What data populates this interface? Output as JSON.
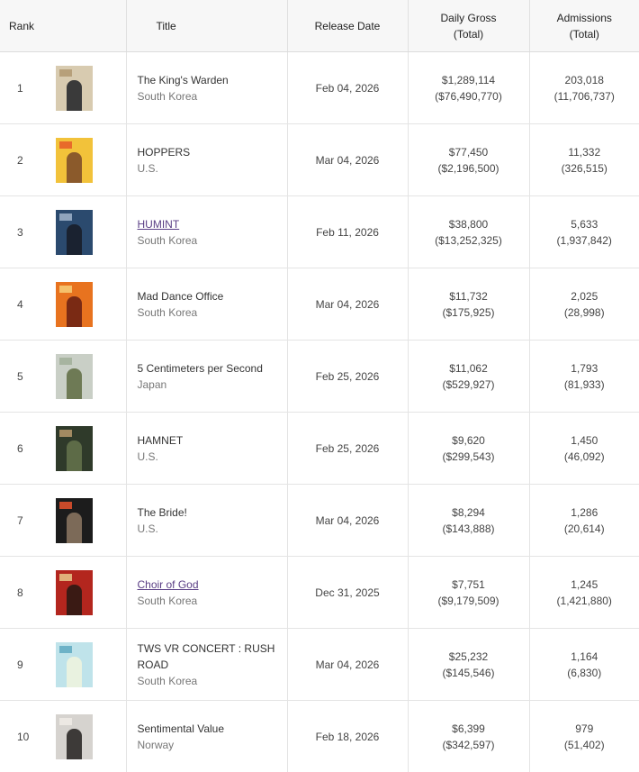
{
  "headers": {
    "rank": "Rank",
    "title": "Title",
    "release": "Release Date",
    "gross_line1": "Daily Gross",
    "gross_line2": "(Total)",
    "adm_line1": "Admissions",
    "adm_line2": "(Total)"
  },
  "rows": [
    {
      "rank": "1",
      "title": "The King's Warden",
      "country": "South Korea",
      "release": "Feb 04, 2026",
      "gross": "$1,289,114",
      "gross_total": "($76,490,770)",
      "adm": "203,018",
      "adm_total": "(11,706,737)",
      "link": false,
      "poster_colors": [
        "#d8cbb0",
        "#3a3a3a",
        "#b7a07a"
      ]
    },
    {
      "rank": "2",
      "title": "HOPPERS",
      "country": "U.S.",
      "release": "Mar 04, 2026",
      "gross": "$77,450",
      "gross_total": "($2,196,500)",
      "adm": "11,332",
      "adm_total": "(326,515)",
      "link": false,
      "poster_colors": [
        "#f2c23a",
        "#8b5a2b",
        "#e86a2a"
      ]
    },
    {
      "rank": "3",
      "title": "HUMINT",
      "country": "South Korea",
      "release": "Feb 11, 2026",
      "gross": "$38,800",
      "gross_total": "($13,252,325)",
      "adm": "5,633",
      "adm_total": "(1,937,842)",
      "link": true,
      "poster_colors": [
        "#2b4a6e",
        "#1a2230",
        "#8fa4bd"
      ]
    },
    {
      "rank": "4",
      "title": "Mad Dance Office",
      "country": "South Korea",
      "release": "Mar 04, 2026",
      "gross": "$11,732",
      "gross_total": "($175,925)",
      "adm": "2,025",
      "adm_total": "(28,998)",
      "link": false,
      "poster_colors": [
        "#e8731f",
        "#7a2a14",
        "#f5c16b"
      ]
    },
    {
      "rank": "5",
      "title": "5 Centimeters per Second",
      "country": "Japan",
      "release": "Feb 25, 2026",
      "gross": "$11,062",
      "gross_total": "($529,927)",
      "adm": "1,793",
      "adm_total": "(81,933)",
      "link": false,
      "poster_colors": [
        "#c9cfc6",
        "#6e7a55",
        "#a7b4a0"
      ]
    },
    {
      "rank": "6",
      "title": "HAMNET",
      "country": "U.S.",
      "release": "Feb 25, 2026",
      "gross": "$9,620",
      "gross_total": "($299,543)",
      "adm": "1,450",
      "adm_total": "(46,092)",
      "link": false,
      "poster_colors": [
        "#2f3a2a",
        "#5d6b47",
        "#a28a62"
      ]
    },
    {
      "rank": "7",
      "title": "The Bride!",
      "country": "U.S.",
      "release": "Mar 04, 2026",
      "gross": "$8,294",
      "gross_total": "($143,888)",
      "adm": "1,286",
      "adm_total": "(20,614)",
      "link": false,
      "poster_colors": [
        "#1c1c1c",
        "#7c6a58",
        "#c94a2a"
      ]
    },
    {
      "rank": "8",
      "title": "Choir of God",
      "country": "South Korea",
      "release": "Dec 31, 2025",
      "gross": "$7,751",
      "gross_total": "($9,179,509)",
      "adm": "1,245",
      "adm_total": "(1,421,880)",
      "link": true,
      "poster_colors": [
        "#b3261e",
        "#3a1a14",
        "#e0b07a"
      ]
    },
    {
      "rank": "9",
      "title": "TWS VR CONCERT : RUSH ROAD",
      "country": "South Korea",
      "release": "Mar 04, 2026",
      "gross": "$25,232",
      "gross_total": "($145,546)",
      "adm": "1,164",
      "adm_total": "(6,830)",
      "link": false,
      "poster_colors": [
        "#bfe3ea",
        "#e9f2e0",
        "#6db2c7"
      ]
    },
    {
      "rank": "10",
      "title": "Sentimental Value",
      "country": "Norway",
      "release": "Feb 18, 2026",
      "gross": "$6,399",
      "gross_total": "($342,597)",
      "adm": "979",
      "adm_total": "(51,402)",
      "link": false,
      "poster_colors": [
        "#d6d3cf",
        "#3d3a38",
        "#ece8e3"
      ]
    }
  ]
}
